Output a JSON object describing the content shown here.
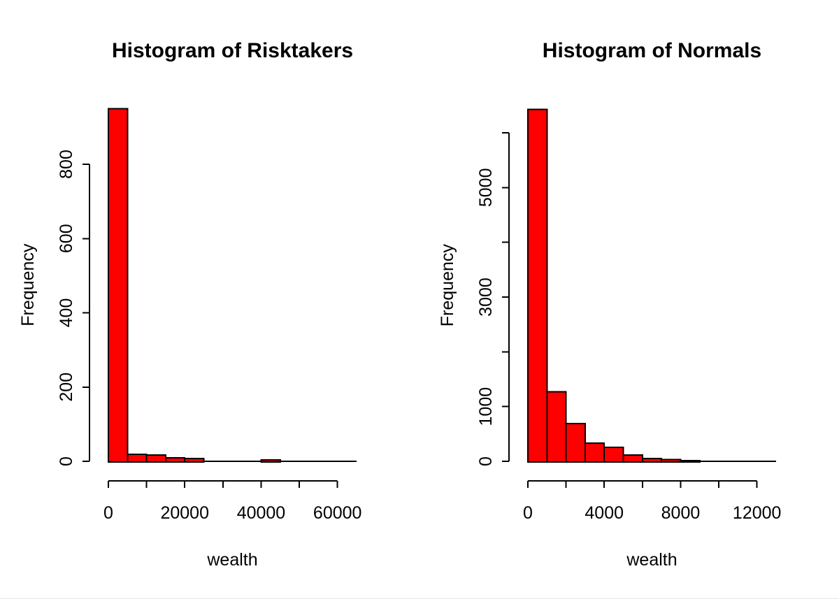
{
  "figure": {
    "background_color": "#ffffff",
    "bar_fill_color": "#ff0000",
    "bar_border_color": "#000000",
    "axis_color": "#000000",
    "text_color": "#000000",
    "bottom_edge_line_color": "#ececec"
  },
  "chart_data": [
    {
      "type": "bar",
      "title": "Histogram of Risktakers",
      "xlabel": "wealth",
      "ylabel": "Frequency",
      "bin_width": 5000,
      "bin_breaks": [
        0,
        5000,
        10000,
        15000,
        20000,
        25000,
        30000,
        35000,
        40000,
        45000,
        50000,
        55000,
        60000,
        65000
      ],
      "counts": [
        950,
        19,
        17,
        9,
        8,
        0,
        0,
        0,
        4,
        0,
        0,
        0,
        1
      ],
      "xlim": [
        0,
        65000
      ],
      "ylim": [
        0,
        950
      ],
      "x_tick_values": [
        0,
        10000,
        20000,
        30000,
        40000,
        50000,
        60000
      ],
      "x_tick_labels": [
        "0",
        "",
        "20000",
        "",
        "40000",
        "",
        "60000"
      ],
      "y_tick_values": [
        0,
        200,
        400,
        600,
        800
      ],
      "y_tick_labels": [
        "0",
        "200",
        "400",
        "600",
        "800"
      ],
      "grid": false,
      "legend_position": "none"
    },
    {
      "type": "bar",
      "title": "Histogram of Normals",
      "xlabel": "wealth",
      "ylabel": "Frequency",
      "bin_width": 1000,
      "bin_breaks": [
        0,
        1000,
        2000,
        3000,
        4000,
        5000,
        6000,
        7000,
        8000,
        9000,
        10000,
        11000,
        12000,
        13000
      ],
      "counts": [
        6430,
        1270,
        690,
        330,
        255,
        115,
        50,
        30,
        12,
        10,
        3,
        1,
        1
      ],
      "xlim": [
        0,
        13000
      ],
      "ylim": [
        0,
        6430
      ],
      "x_tick_values": [
        0,
        2000,
        4000,
        6000,
        8000,
        10000,
        12000
      ],
      "x_tick_labels": [
        "0",
        "",
        "4000",
        "",
        "8000",
        "",
        "12000"
      ],
      "y_tick_values": [
        0,
        1000,
        2000,
        3000,
        4000,
        5000,
        6000
      ],
      "y_tick_labels": [
        "0",
        "1000",
        "",
        "3000",
        "",
        "5000",
        ""
      ],
      "grid": false,
      "legend_position": "none"
    }
  ]
}
